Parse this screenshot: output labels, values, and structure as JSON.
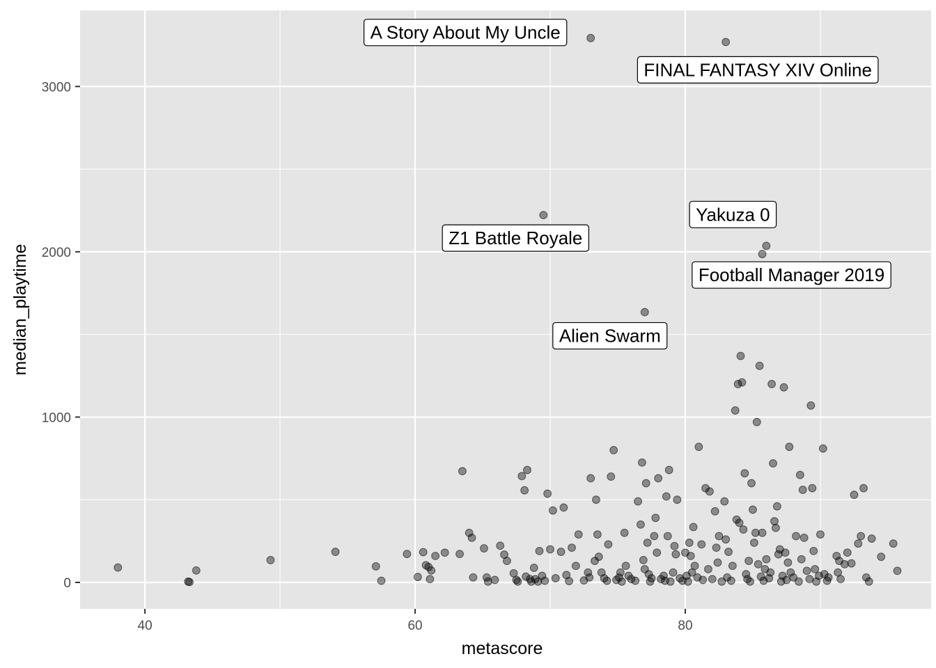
{
  "chart_data": {
    "type": "scatter",
    "title": "",
    "xlabel": "metascore",
    "ylabel": "median_playtime",
    "xlim": [
      35.2,
      98.2
    ],
    "ylim": [
      -160,
      3460
    ],
    "x_ticks": [
      40,
      60,
      80
    ],
    "y_ticks": [
      0,
      1000,
      2000,
      3000
    ],
    "grid": true,
    "colors": {
      "panel_background": "#e5e5e5",
      "grid_line": "#ffffff",
      "point": "#000000",
      "tick": "#333333"
    },
    "point_opacity": 0.4,
    "labels": [
      {
        "text": "A Story About My Uncle",
        "x": 73,
        "y": 3293
      },
      {
        "text": "FINAL FANTASY XIV Online",
        "x": 83,
        "y": 3269
      },
      {
        "text": "Z1 Battle Royale",
        "x": 69.5,
        "y": 2222
      },
      {
        "text": "Yakuza 0",
        "x": 86,
        "y": 2036
      },
      {
        "text": "Football Manager 2019",
        "x": 85.7,
        "y": 1986
      },
      {
        "text": "Alien Swarm",
        "x": 77,
        "y": 1635
      }
    ],
    "points": [
      [
        73,
        3293
      ],
      [
        83,
        3269
      ],
      [
        69.5,
        2222
      ],
      [
        86,
        2036
      ],
      [
        85.7,
        1986
      ],
      [
        77,
        1635
      ],
      [
        38,
        90
      ],
      [
        43.2,
        5
      ],
      [
        43.3,
        2
      ],
      [
        43.8,
        72
      ],
      [
        49.3,
        135
      ],
      [
        54.1,
        185
      ],
      [
        57.1,
        97
      ],
      [
        57.5,
        10
      ],
      [
        59.4,
        172
      ],
      [
        60.2,
        33
      ],
      [
        60.6,
        183
      ],
      [
        60.8,
        104
      ],
      [
        61,
        93
      ],
      [
        61.1,
        20
      ],
      [
        61.2,
        72
      ],
      [
        61.5,
        160
      ],
      [
        62.2,
        180
      ],
      [
        63.3,
        172
      ],
      [
        63.5,
        673
      ],
      [
        64,
        300
      ],
      [
        64.2,
        270
      ],
      [
        64.3,
        30
      ],
      [
        65.1,
        206
      ],
      [
        65.3,
        30
      ],
      [
        65.4,
        5
      ],
      [
        65.9,
        15
      ],
      [
        66.3,
        222
      ],
      [
        66.6,
        168
      ],
      [
        66.8,
        130
      ],
      [
        67.3,
        55
      ],
      [
        67.5,
        15
      ],
      [
        67.6,
        5
      ],
      [
        67.9,
        643
      ],
      [
        68.1,
        557
      ],
      [
        68.2,
        35
      ],
      [
        68.3,
        680
      ],
      [
        68.5,
        20
      ],
      [
        68.6,
        5
      ],
      [
        68.8,
        88
      ],
      [
        68.9,
        20
      ],
      [
        69.1,
        5
      ],
      [
        69.2,
        190
      ],
      [
        69.4,
        40
      ],
      [
        69.6,
        10
      ],
      [
        69.8,
        537
      ],
      [
        70,
        200
      ],
      [
        70.2,
        435
      ],
      [
        70.4,
        25
      ],
      [
        70.8,
        185
      ],
      [
        71,
        453
      ],
      [
        71.2,
        45
      ],
      [
        71.4,
        8
      ],
      [
        71.6,
        210
      ],
      [
        71.9,
        100
      ],
      [
        72.1,
        290
      ],
      [
        72.5,
        12
      ],
      [
        72.8,
        60
      ],
      [
        72.9,
        30
      ],
      [
        73,
        630
      ],
      [
        73.3,
        130
      ],
      [
        73.4,
        500
      ],
      [
        73.5,
        290
      ],
      [
        73.6,
        155
      ],
      [
        73.8,
        60
      ],
      [
        74,
        25
      ],
      [
        74.2,
        10
      ],
      [
        74.3,
        230
      ],
      [
        74.5,
        640
      ],
      [
        74.7,
        800
      ],
      [
        74.9,
        15
      ],
      [
        75.1,
        30
      ],
      [
        75.2,
        60
      ],
      [
        75.3,
        5
      ],
      [
        75.5,
        300
      ],
      [
        75.6,
        100
      ],
      [
        75.8,
        40
      ],
      [
        76,
        20
      ],
      [
        76.3,
        10
      ],
      [
        76.5,
        490
      ],
      [
        76.7,
        350
      ],
      [
        76.8,
        725
      ],
      [
        76.9,
        135
      ],
      [
        77,
        80
      ],
      [
        77.1,
        600
      ],
      [
        77.2,
        240
      ],
      [
        77.3,
        50
      ],
      [
        77.4,
        5
      ],
      [
        77.5,
        25
      ],
      [
        77.7,
        280
      ],
      [
        77.8,
        390
      ],
      [
        77.9,
        180
      ],
      [
        78,
        630
      ],
      [
        78.2,
        20
      ],
      [
        78.4,
        40
      ],
      [
        78.5,
        10
      ],
      [
        78.6,
        520
      ],
      [
        78.7,
        280
      ],
      [
        78.8,
        680
      ],
      [
        78.9,
        5
      ],
      [
        79.1,
        60
      ],
      [
        79.2,
        220
      ],
      [
        79.3,
        170
      ],
      [
        79.4,
        500
      ],
      [
        79.6,
        25
      ],
      [
        79.8,
        10
      ],
      [
        80,
        180
      ],
      [
        80.1,
        40
      ],
      [
        80.2,
        5
      ],
      [
        80.3,
        240
      ],
      [
        80.4,
        160
      ],
      [
        80.5,
        60
      ],
      [
        80.6,
        335
      ],
      [
        80.7,
        100
      ],
      [
        80.9,
        30
      ],
      [
        81,
        820
      ],
      [
        81.2,
        230
      ],
      [
        81.3,
        15
      ],
      [
        81.5,
        570
      ],
      [
        81.7,
        80
      ],
      [
        81.8,
        550
      ],
      [
        82,
        20
      ],
      [
        82.2,
        430
      ],
      [
        82.3,
        210
      ],
      [
        82.4,
        120
      ],
      [
        82.5,
        280
      ],
      [
        82.7,
        5
      ],
      [
        82.9,
        490
      ],
      [
        83,
        260
      ],
      [
        83.1,
        30
      ],
      [
        83.2,
        185
      ],
      [
        83.4,
        10
      ],
      [
        83.5,
        100
      ],
      [
        83.7,
        1040
      ],
      [
        83.8,
        380
      ],
      [
        83.9,
        1200
      ],
      [
        84,
        360
      ],
      [
        84.1,
        1370
      ],
      [
        84.2,
        1210
      ],
      [
        84.3,
        320
      ],
      [
        84.4,
        660
      ],
      [
        84.5,
        50
      ],
      [
        84.6,
        20
      ],
      [
        84.7,
        130
      ],
      [
        84.8,
        5
      ],
      [
        84.9,
        600
      ],
      [
        85,
        440
      ],
      [
        85.1,
        240
      ],
      [
        85.2,
        300
      ],
      [
        85.3,
        970
      ],
      [
        85.4,
        110
      ],
      [
        85.5,
        1310
      ],
      [
        85.6,
        35
      ],
      [
        85.7,
        300
      ],
      [
        85.8,
        10
      ],
      [
        85.9,
        80
      ],
      [
        86,
        140
      ],
      [
        86.2,
        25
      ],
      [
        86.3,
        60
      ],
      [
        86.4,
        1200
      ],
      [
        86.5,
        720
      ],
      [
        86.6,
        370
      ],
      [
        86.7,
        330
      ],
      [
        86.8,
        460
      ],
      [
        86.9,
        170
      ],
      [
        87,
        200
      ],
      [
        87.1,
        5
      ],
      [
        87.2,
        40
      ],
      [
        87.3,
        1180
      ],
      [
        87.4,
        180
      ],
      [
        87.5,
        15
      ],
      [
        87.6,
        120
      ],
      [
        87.7,
        820
      ],
      [
        87.8,
        60
      ],
      [
        88,
        30
      ],
      [
        88.2,
        280
      ],
      [
        88.4,
        5
      ],
      [
        88.5,
        650
      ],
      [
        88.6,
        140
      ],
      [
        88.7,
        560
      ],
      [
        88.8,
        270
      ],
      [
        89,
        70
      ],
      [
        89.2,
        20
      ],
      [
        89.3,
        1070
      ],
      [
        89.4,
        570
      ],
      [
        89.5,
        190
      ],
      [
        89.6,
        80
      ],
      [
        89.7,
        5
      ],
      [
        89.9,
        40
      ],
      [
        90,
        290
      ],
      [
        90.2,
        810
      ],
      [
        90.3,
        50
      ],
      [
        90.5,
        10
      ],
      [
        90.6,
        30
      ],
      [
        91.2,
        160
      ],
      [
        91.3,
        60
      ],
      [
        91.4,
        130
      ],
      [
        91.5,
        20
      ],
      [
        91.8,
        110
      ],
      [
        92,
        180
      ],
      [
        92.3,
        115
      ],
      [
        92.5,
        530
      ],
      [
        92.8,
        235
      ],
      [
        93,
        280
      ],
      [
        93.2,
        570
      ],
      [
        93.4,
        30
      ],
      [
        93.6,
        5
      ],
      [
        93.8,
        265
      ],
      [
        94.5,
        155
      ],
      [
        95.4,
        235
      ],
      [
        95.7,
        70
      ]
    ]
  }
}
